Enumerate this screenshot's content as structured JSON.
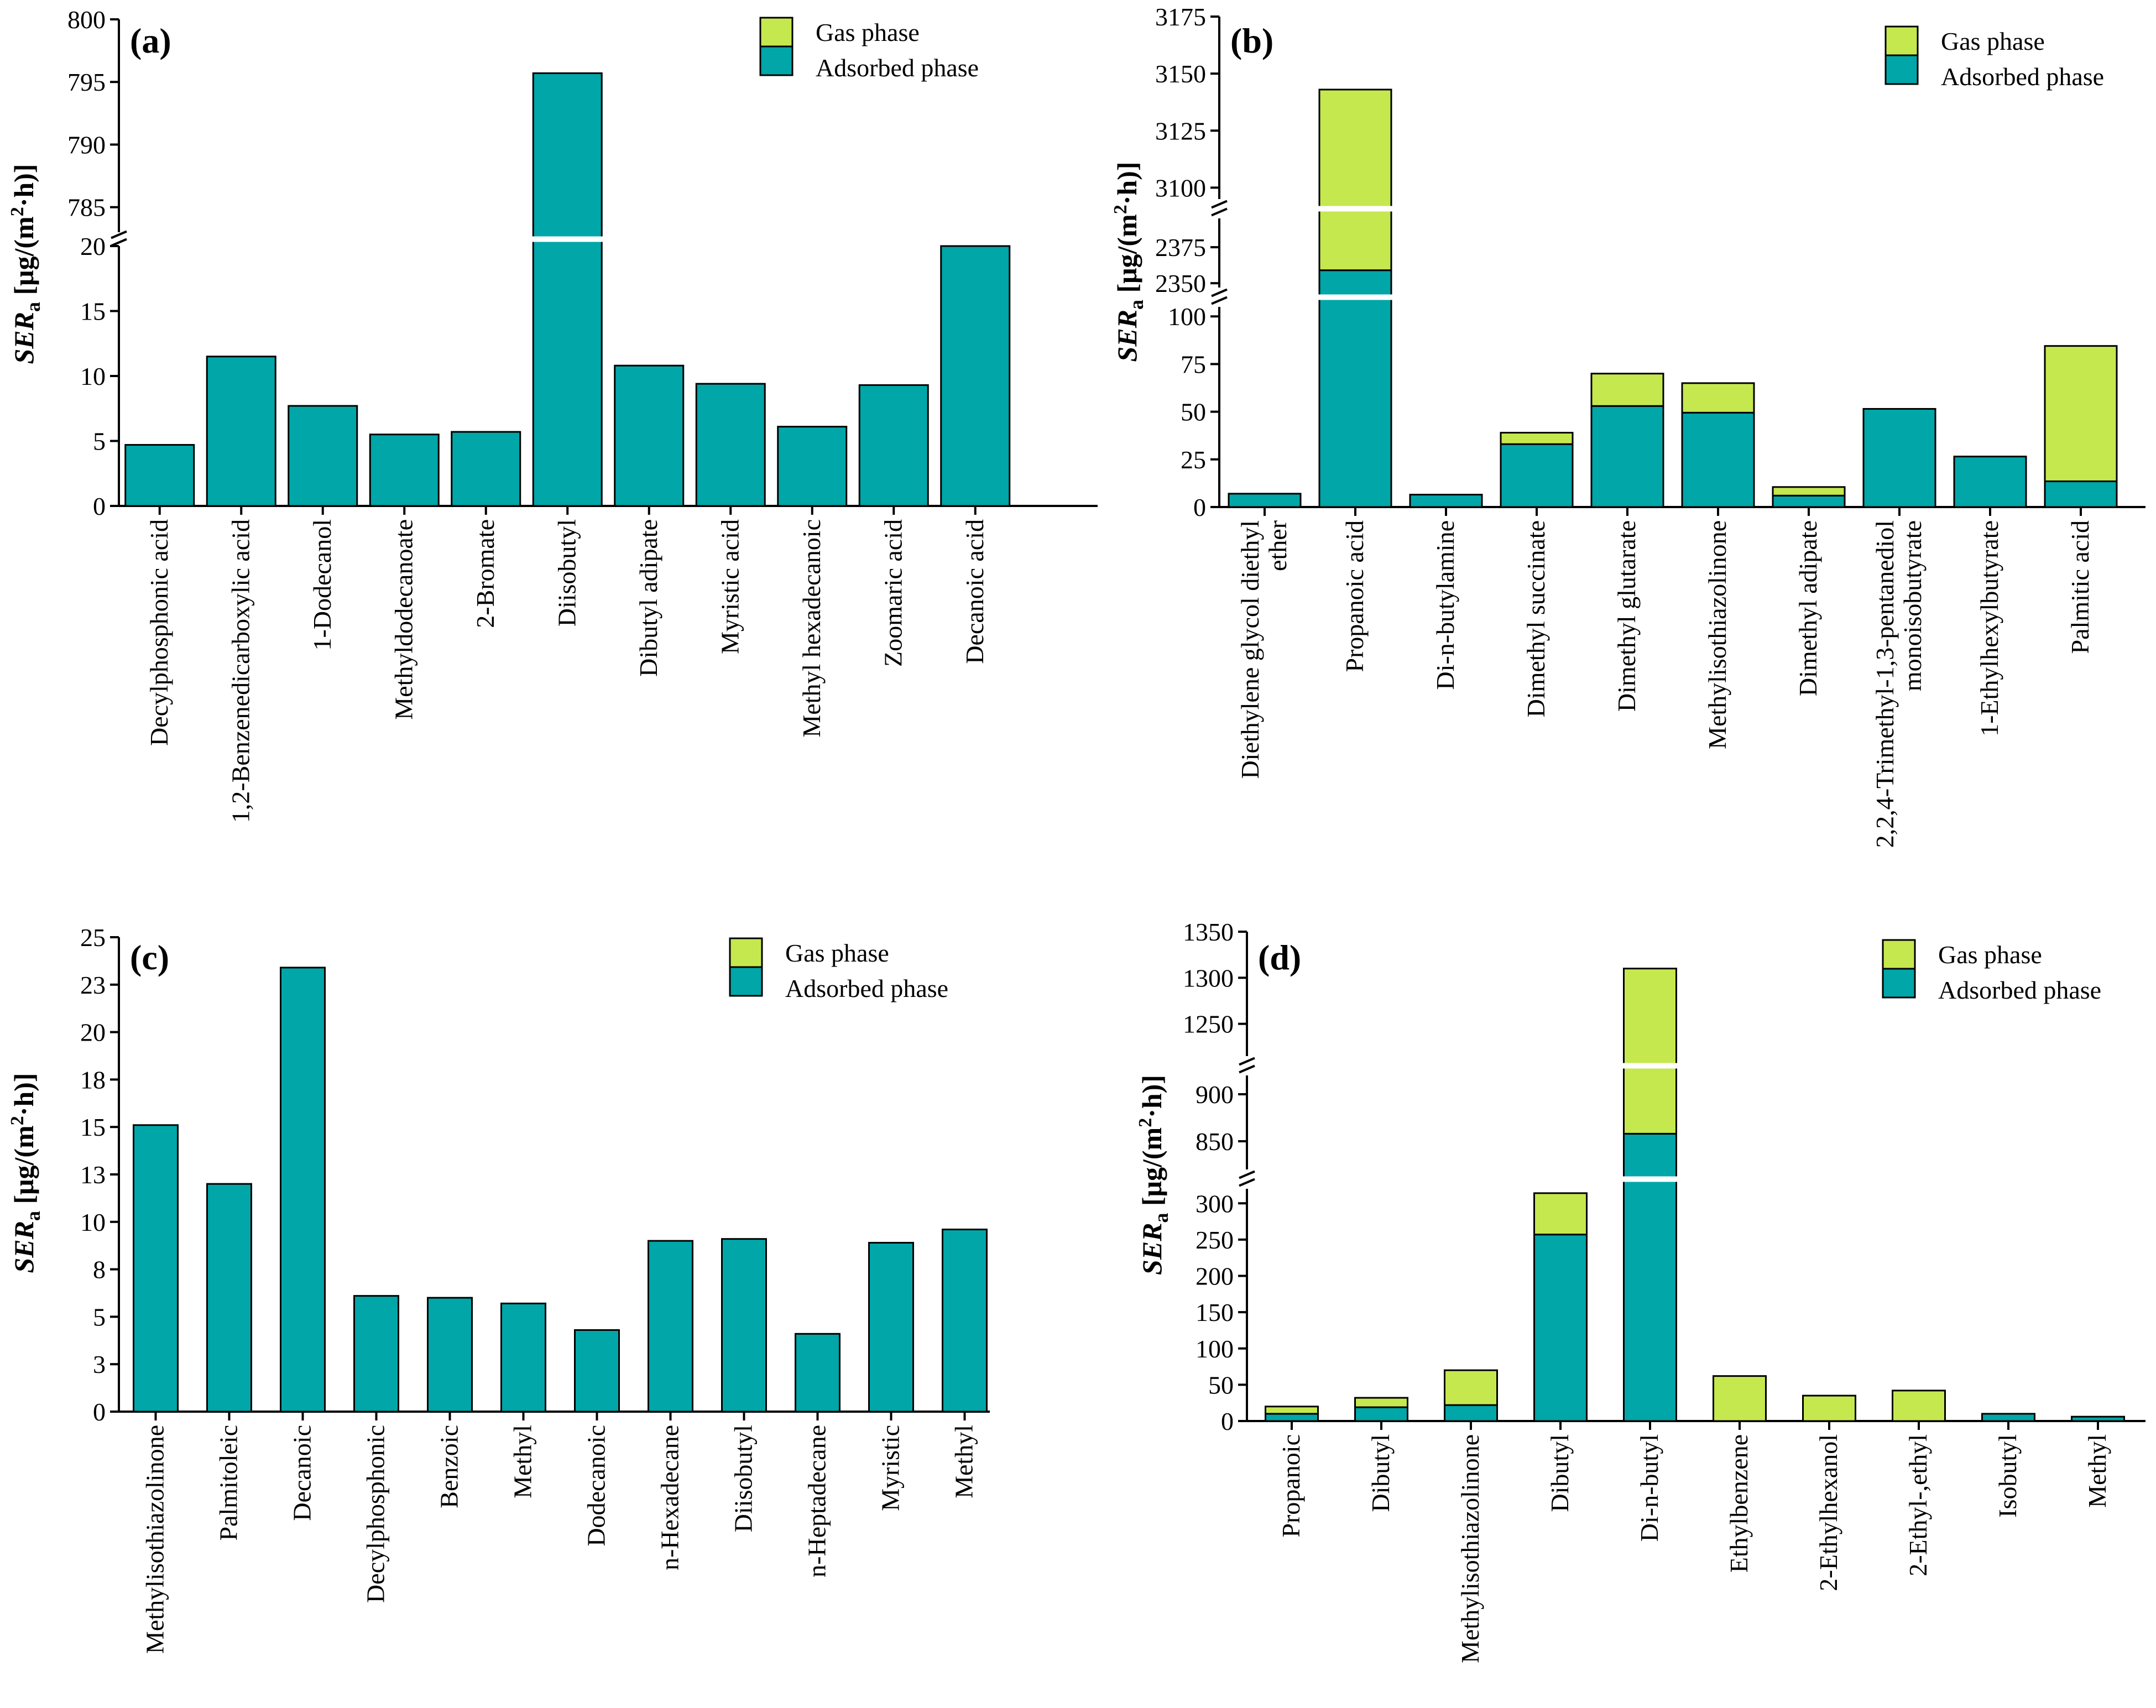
{
  "figure": {
    "legend": {
      "gas": "Gas phase",
      "adsorbed": "Adsorbed phase"
    },
    "y_label": {
      "main": "SER",
      "sub": "a",
      "unit_pre": " [μg/(m",
      "unit_sup": "2",
      "unit_post": "·h)]"
    },
    "colors": {
      "gas": "#c5e84f",
      "adsorbed": "#00a6a8",
      "edge": "#000000"
    }
  },
  "chart_data": [
    {
      "id": "a",
      "panel_label": "(a)",
      "type": "bar",
      "stacked": true,
      "ylabel": "SERa [μg/(m2·h)]",
      "broken_axis": true,
      "segments": [
        {
          "range": [
            0,
            20
          ],
          "ticks": [
            0,
            5,
            10,
            15,
            20
          ]
        },
        {
          "range": [
            783,
            800
          ],
          "ticks": [
            785,
            790,
            795,
            800
          ]
        }
      ],
      "categories": [
        "Decylphosphonic acid",
        "1,2-Benzenedicarboxylic acid",
        "1-Dodecanol",
        "Methyldodecanoate",
        "2-Bromate",
        "Diisobutyl",
        "Dibutyl adipate",
        "Myristic acid",
        "Methyl hexadecanoic",
        "Zoomaric acid",
        "Decanoic acid"
      ],
      "series": [
        {
          "name": "Adsorbed phase",
          "values": [
            4.7,
            11.5,
            7.7,
            5.5,
            5.7,
            795.7,
            10.8,
            9.4,
            6.1,
            9.3,
            20
          ]
        },
        {
          "name": "Gas phase",
          "values": [
            0,
            0,
            0,
            0,
            0,
            0,
            0,
            0,
            0,
            0,
            0
          ]
        }
      ]
    },
    {
      "id": "b",
      "panel_label": "(b)",
      "type": "bar",
      "stacked": true,
      "ylabel": "SERa [μg/(m2·h)]",
      "broken_axis": true,
      "segments": [
        {
          "range": [
            0,
            105
          ],
          "ticks": [
            0,
            25,
            50,
            75,
            100
          ]
        },
        {
          "range": [
            2347,
            2395
          ],
          "ticks": [
            2350,
            2375
          ]
        },
        {
          "range": [
            3095,
            3175
          ],
          "ticks": [
            3100,
            3125,
            3150,
            3175
          ]
        }
      ],
      "categories": [
        "Diethylene glycol diethyl ether",
        "Propanoic acid",
        "Di-n-butylamine",
        "Dimethyl succinate",
        "Dimethyl glutarate",
        "Methylisothiazolinone",
        "Dimethyl adipate",
        "2,2,4-Trimethyl-1,3-pentanediol monoisobutyrate",
        "1-Ethylhexylbutyrate",
        "Palmitic acid"
      ],
      "series": [
        {
          "name": "Adsorbed phase",
          "values": [
            7,
            2359,
            6.5,
            33,
            53,
            49.5,
            6,
            51.5,
            26.5,
            13.5
          ]
        },
        {
          "name": "Gas phase",
          "values": [
            0,
            784,
            0,
            6,
            17,
            15.5,
            4.5,
            0,
            0,
            71
          ]
        }
      ]
    },
    {
      "id": "c",
      "panel_label": "(c)",
      "type": "bar",
      "stacked": true,
      "ylabel": "SERa [μg/(m2·h)]",
      "broken_axis": false,
      "ylim": [
        0,
        25
      ],
      "ticks": [
        0,
        2.5,
        5,
        7.5,
        10,
        12.5,
        15,
        17.5,
        20,
        22.5,
        25
      ],
      "tick_labels": [
        "0",
        "3",
        "5",
        "8",
        "10",
        "13",
        "15",
        "18",
        "20",
        "23",
        "25"
      ],
      "categories": [
        "Methylisothiazolinone",
        "Palmitoleic",
        "Decanoic",
        "Decylphosphonic",
        "Benzoic",
        "Methyl",
        "Dodecanoic",
        "n-Hexadecane",
        "Diisobutyl",
        "n-Heptadecane",
        "Myristic",
        "Methyl"
      ],
      "series": [
        {
          "name": "Adsorbed phase",
          "values": [
            15.1,
            12.0,
            23.4,
            6.1,
            6.0,
            5.7,
            4.3,
            9.0,
            9.1,
            4.1,
            8.9,
            9.6
          ]
        },
        {
          "name": "Gas phase",
          "values": [
            0,
            0,
            0,
            0,
            0,
            0,
            0,
            0,
            0,
            0,
            0,
            0
          ]
        }
      ]
    },
    {
      "id": "d",
      "panel_label": "(d)",
      "type": "bar",
      "stacked": true,
      "ylabel": "SERa [μg/(m2·h)]",
      "broken_axis": true,
      "segments": [
        {
          "range": [
            0,
            320
          ],
          "ticks": [
            0,
            50,
            100,
            150,
            200,
            250,
            300
          ]
        },
        {
          "range": [
            820,
            920
          ],
          "ticks": [
            850,
            900
          ]
        },
        {
          "range": [
            1215,
            1350
          ],
          "ticks": [
            1250,
            1300,
            1350
          ]
        }
      ],
      "categories": [
        "Propanoic",
        "Dibutyl",
        "Methylisothiazolinone",
        "Dibutyl",
        "Di-n-butyl",
        "Ethylbenzene",
        "2-Ethylhexanol",
        "2-Ethyl-,ethyl",
        "Isobutyl",
        "Methyl"
      ],
      "series": [
        {
          "name": "Adsorbed phase",
          "values": [
            10,
            19,
            22,
            257,
            858,
            0,
            0,
            0,
            10,
            6
          ]
        },
        {
          "name": "Gas phase",
          "values": [
            10,
            13,
            48,
            57,
            452,
            62,
            35,
            42,
            0,
            0
          ]
        }
      ]
    }
  ]
}
